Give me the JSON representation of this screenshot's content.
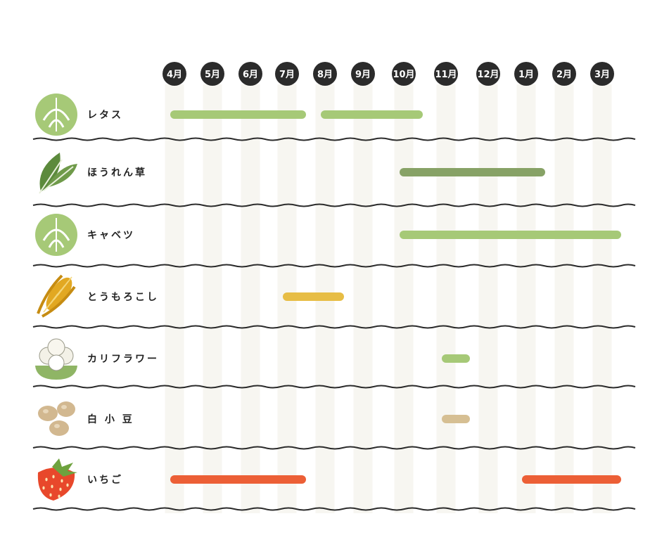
{
  "chart_data": {
    "type": "gantt",
    "title": "",
    "months": [
      "4月",
      "5月",
      "6月",
      "7月",
      "8月",
      "9月",
      "10月",
      "11月",
      "12月",
      "1月",
      "2月",
      "3月"
    ],
    "rows": [
      {
        "name": "レタス",
        "icon": "lettuce-icon",
        "color": "#a6c977",
        "periods": [
          {
            "start": "4月",
            "end": "7月"
          },
          {
            "start": "8月",
            "end": "10月"
          }
        ]
      },
      {
        "name": "ほうれん草",
        "icon": "spinach-icon",
        "color": "#87a266",
        "periods": [
          {
            "start": "10月",
            "end": "1月"
          }
        ]
      },
      {
        "name": "キャベツ",
        "icon": "cabbage-icon",
        "color": "#a6c977",
        "periods": [
          {
            "start": "10月",
            "end": "3月"
          }
        ]
      },
      {
        "name": "とうもろこし",
        "icon": "corn-icon",
        "color": "#e7bd45",
        "periods": [
          {
            "start": "7月",
            "end": "8月"
          }
        ]
      },
      {
        "name": "カリフラワー",
        "icon": "cauliflower-icon",
        "color": "#a6c977",
        "periods": [
          {
            "start": "11月",
            "end": "11月"
          }
        ]
      },
      {
        "name": "白 小 豆",
        "icon": "white-adzuki-bean-icon",
        "color": "#d6bf93",
        "periods": [
          {
            "start": "11月",
            "end": "11月"
          }
        ]
      },
      {
        "name": "いちご",
        "icon": "strawberry-icon",
        "color": "#ec5f36",
        "periods": [
          {
            "start": "4月",
            "end": "7月"
          },
          {
            "start": "1月",
            "end": "3月"
          }
        ]
      }
    ],
    "grid": true,
    "colors": {
      "month_badge": "#2b2b2b",
      "column_stripe": "#f7f6f1",
      "divider": "#2b2b2b"
    }
  }
}
